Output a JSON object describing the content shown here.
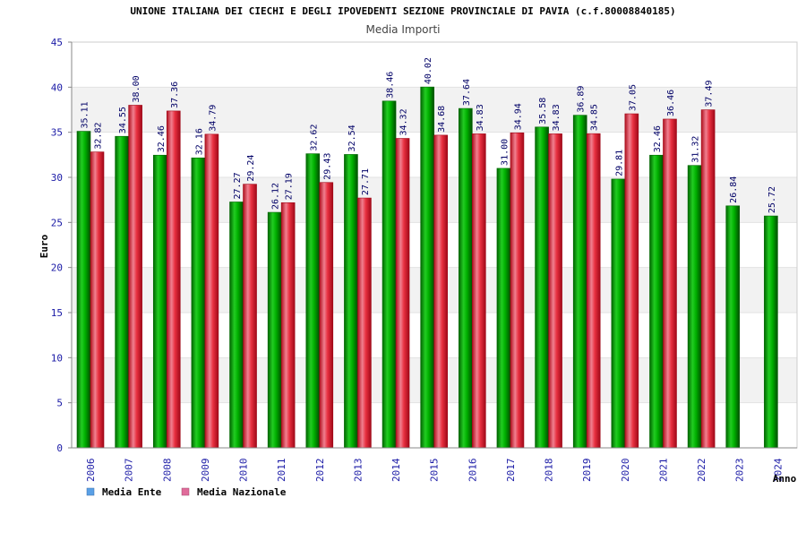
{
  "chart_data": {
    "type": "bar",
    "title": "UNIONE ITALIANA DEI CIECHI E DEGLI IPOVEDENTI SEZIONE PROVINCIALE DI PAVIA (c.f.80008840185)",
    "subtitle": "Media Importi",
    "xlabel": "Anno",
    "ylabel": "Euro",
    "ylim": [
      0,
      45
    ],
    "yticks": [
      0,
      5,
      10,
      15,
      20,
      25,
      30,
      35,
      40,
      45
    ],
    "categories": [
      "2006",
      "2007",
      "2008",
      "2009",
      "2010",
      "2011",
      "2012",
      "2013",
      "2014",
      "2015",
      "2016",
      "2017",
      "2018",
      "2019",
      "2020",
      "2021",
      "2022",
      "2023",
      "2024"
    ],
    "series": [
      {
        "name": "Media Ente",
        "color": "#00aa00",
        "values": [
          35.11,
          34.55,
          32.46,
          32.16,
          27.27,
          26.12,
          32.62,
          32.54,
          38.46,
          40.02,
          37.64,
          31.0,
          35.58,
          36.89,
          29.81,
          32.46,
          31.32,
          26.84,
          25.72
        ],
        "labels": [
          "35.11",
          "34.55",
          "32.46",
          "32.16",
          "27.27",
          "26.12",
          "32.62",
          "32.54",
          "38.46",
          "40.02",
          "37.64",
          "31.00",
          "35.58",
          "36.89",
          "29.81",
          "32.46",
          "31.32",
          "26.84",
          "25.72"
        ]
      },
      {
        "name": "Media Nazionale",
        "color": "#e8283a",
        "values": [
          32.82,
          38.0,
          37.36,
          34.79,
          29.24,
          27.19,
          29.43,
          27.71,
          34.32,
          34.68,
          34.83,
          34.94,
          34.83,
          34.85,
          37.05,
          36.46,
          37.49,
          null,
          null
        ],
        "labels": [
          "32.82",
          "38.00",
          "37.36",
          "34.79",
          "29.24",
          "27.19",
          "29.43",
          "27.71",
          "34.32",
          "34.68",
          "34.83",
          "34.94",
          "34.83",
          "34.85",
          "37.05",
          "36.46",
          "37.49",
          "",
          ""
        ]
      }
    ],
    "legend": [
      {
        "label": "Media Ente",
        "color": "#5aa0e6"
      },
      {
        "label": "Media Nazionale",
        "color": "#e06b9a"
      }
    ],
    "legend_position": "bottom-left",
    "grid": true
  }
}
